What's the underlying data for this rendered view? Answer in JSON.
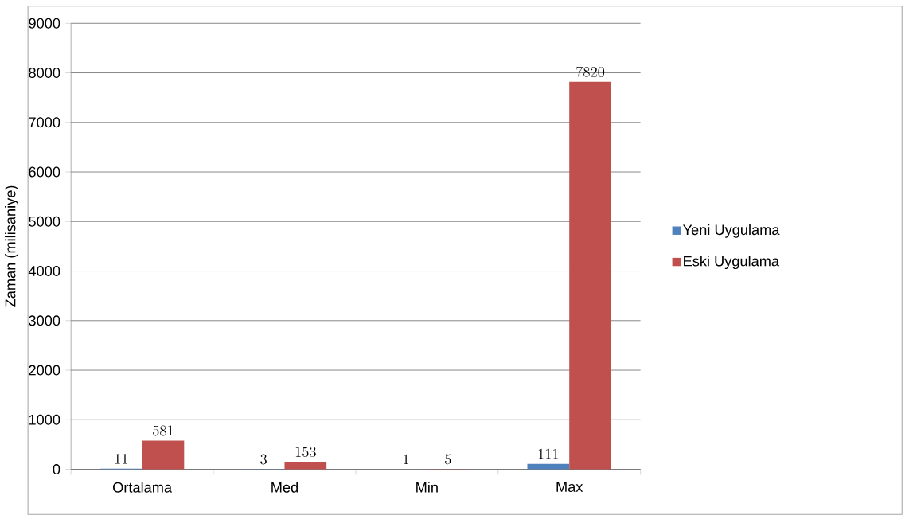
{
  "chart_data": {
    "type": "bar",
    "ylabel": "Zaman (milisaniye)",
    "categories": [
      "Ortalama",
      "Med",
      "Min",
      "Max"
    ],
    "series": [
      {
        "name": "Yeni Uygulama",
        "color": "#4f81bd",
        "values": [
          11,
          3,
          1,
          111
        ]
      },
      {
        "name": "Eski Uygulama",
        "color": "#c0504d",
        "values": [
          581,
          153,
          5,
          7820
        ]
      }
    ],
    "ylim": [
      0,
      9000
    ],
    "yticks": [
      0,
      1000,
      2000,
      3000,
      4000,
      5000,
      6000,
      7000,
      8000,
      9000
    ],
    "grid": "y",
    "legend": "right",
    "data_labels": true
  }
}
